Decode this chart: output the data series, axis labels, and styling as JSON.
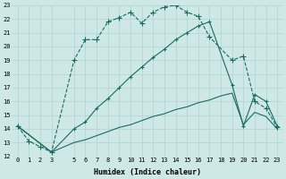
{
  "title": "",
  "xlabel": "Humidex (Indice chaleur)",
  "bg_color": "#cde8e5",
  "grid_color": "#b0d4d0",
  "line_color": "#1a6b63",
  "line1_x": [
    0,
    1,
    2,
    3,
    5,
    6,
    7,
    8,
    9,
    10,
    11,
    12,
    13,
    14,
    15,
    16,
    17,
    19,
    20,
    21,
    22,
    23
  ],
  "line1_y": [
    14.2,
    13.1,
    12.7,
    12.3,
    19.0,
    20.5,
    20.5,
    21.8,
    22.1,
    22.5,
    21.7,
    22.5,
    22.9,
    23.0,
    22.5,
    22.2,
    20.7,
    19.0,
    19.3,
    16.0,
    15.5,
    14.1
  ],
  "line2_x": [
    0,
    3,
    5,
    6,
    7,
    8,
    9,
    10,
    11,
    12,
    13,
    14,
    15,
    16,
    17,
    19,
    20,
    21,
    22,
    23
  ],
  "line2_y": [
    14.2,
    12.3,
    14.0,
    14.5,
    15.5,
    16.2,
    17.0,
    17.8,
    18.5,
    19.2,
    19.8,
    20.5,
    21.0,
    21.5,
    21.8,
    17.2,
    14.2,
    16.5,
    16.0,
    14.2
  ],
  "line3_x": [
    0,
    3,
    5,
    6,
    7,
    8,
    9,
    10,
    11,
    12,
    13,
    14,
    15,
    16,
    17,
    18,
    19,
    20,
    21,
    22,
    23
  ],
  "line3_y": [
    14.2,
    12.3,
    13.0,
    13.2,
    13.5,
    13.8,
    14.1,
    14.3,
    14.6,
    14.9,
    15.1,
    15.4,
    15.6,
    15.9,
    16.1,
    16.4,
    16.6,
    14.3,
    15.2,
    14.9,
    14.0
  ],
  "ylim": [
    12,
    23
  ],
  "xlim": [
    -0.5,
    23.5
  ],
  "yticks": [
    12,
    13,
    14,
    15,
    16,
    17,
    18,
    19,
    20,
    21,
    22,
    23
  ],
  "xtick_positions": [
    0,
    1,
    2,
    3,
    5,
    6,
    7,
    8,
    9,
    10,
    11,
    12,
    13,
    14,
    15,
    16,
    17,
    18,
    19,
    20,
    21,
    22,
    23
  ],
  "xtick_labels": [
    "0",
    "1",
    "2",
    "3",
    "5",
    "6",
    "7",
    "8",
    "9",
    "10",
    "11",
    "12",
    "13",
    "14",
    "15",
    "16",
    "17",
    "18",
    "19",
    "20",
    "21",
    "22",
    "23"
  ],
  "title_fontsize": 7,
  "axis_fontsize": 6,
  "tick_fontsize": 5
}
